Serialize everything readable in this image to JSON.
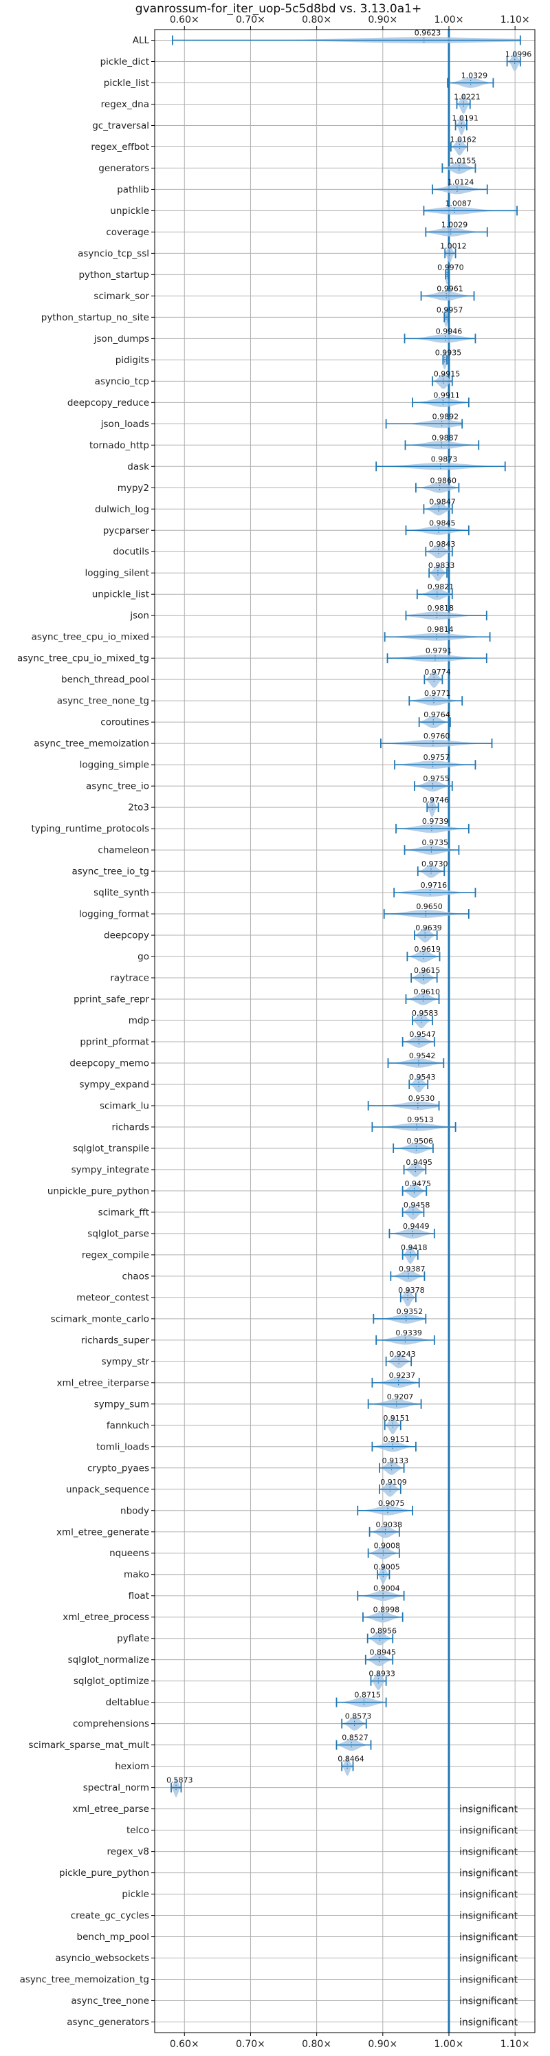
{
  "chart_data": {
    "type": "violin",
    "title": "gvanrossum-for_iter_uop-5c5d8bd vs. 3.13.0a1+",
    "xlim": [
      0.555,
      1.13
    ],
    "x_ticks": [
      0.6,
      0.7,
      0.8,
      0.9,
      1.0,
      1.1
    ],
    "x_tick_labels": [
      "0.60×",
      "0.70×",
      "0.80×",
      "0.90×",
      "1.00×",
      "1.10×"
    ],
    "reference_line": 1.0,
    "grid": true,
    "colors": {
      "series": "#1f77b4",
      "violin": "#a9c8e6",
      "grid": "#b0b0b0"
    },
    "insignificant_label": "insignificant",
    "benchmarks": [
      {
        "name": "ALL",
        "value": 0.9623,
        "label": "0.9623",
        "min": 0.582,
        "max": 1.108,
        "sig": true
      },
      {
        "name": "pickle_dict",
        "value": 1.0996,
        "label": "1.0996",
        "min": 1.088,
        "max": 1.108,
        "sig": true
      },
      {
        "name": "pickle_list",
        "value": 1.0329,
        "label": "1.0329",
        "min": 0.998,
        "max": 1.067,
        "sig": true
      },
      {
        "name": "regex_dna",
        "value": 1.0221,
        "label": "1.0221",
        "min": 1.012,
        "max": 1.032,
        "sig": true
      },
      {
        "name": "gc_traversal",
        "value": 1.0191,
        "label": "1.0191",
        "min": 1.01,
        "max": 1.027,
        "sig": true
      },
      {
        "name": "regex_effbot",
        "value": 1.0162,
        "label": "1.0162",
        "min": 1.003,
        "max": 1.028,
        "sig": true
      },
      {
        "name": "generators",
        "value": 1.0155,
        "label": "1.0155",
        "min": 0.99,
        "max": 1.04,
        "sig": true
      },
      {
        "name": "pathlib",
        "value": 1.0124,
        "label": "1.0124",
        "min": 0.975,
        "max": 1.058,
        "sig": true
      },
      {
        "name": "unpickle",
        "value": 1.0087,
        "label": "1.0087",
        "min": 0.962,
        "max": 1.103,
        "sig": true
      },
      {
        "name": "coverage",
        "value": 1.0029,
        "label": "1.0029",
        "min": 0.965,
        "max": 1.058,
        "sig": true
      },
      {
        "name": "asyncio_tcp_ssl",
        "value": 1.0012,
        "label": "1.0012",
        "min": 0.994,
        "max": 1.01,
        "sig": true
      },
      {
        "name": "python_startup",
        "value": 0.997,
        "label": "0.9970",
        "min": 0.995,
        "max": 0.999,
        "sig": true
      },
      {
        "name": "scimark_sor",
        "value": 0.9961,
        "label": "0.9961",
        "min": 0.958,
        "max": 1.038,
        "sig": true
      },
      {
        "name": "python_startup_no_site",
        "value": 0.9957,
        "label": "0.9957",
        "min": 0.993,
        "max": 0.999,
        "sig": true
      },
      {
        "name": "json_dumps",
        "value": 0.9946,
        "label": "0.9946",
        "min": 0.933,
        "max": 1.04,
        "sig": true
      },
      {
        "name": "pidigits",
        "value": 0.9935,
        "label": "0.9935",
        "min": 0.991,
        "max": 0.997,
        "sig": true
      },
      {
        "name": "asyncio_tcp",
        "value": 0.9915,
        "label": "0.9915",
        "min": 0.975,
        "max": 1.005,
        "sig": true
      },
      {
        "name": "deepcopy_reduce",
        "value": 0.9911,
        "label": "0.9911",
        "min": 0.945,
        "max": 1.03,
        "sig": true
      },
      {
        "name": "json_loads",
        "value": 0.9892,
        "label": "0.9892",
        "min": 0.905,
        "max": 1.02,
        "sig": true
      },
      {
        "name": "tornado_http",
        "value": 0.9887,
        "label": "0.9887",
        "min": 0.934,
        "max": 1.045,
        "sig": true
      },
      {
        "name": "dask",
        "value": 0.9873,
        "label": "0.9873",
        "min": 0.89,
        "max": 1.085,
        "sig": true
      },
      {
        "name": "mypy2",
        "value": 0.986,
        "label": "0.9860",
        "min": 0.95,
        "max": 1.015,
        "sig": true
      },
      {
        "name": "dulwich_log",
        "value": 0.9847,
        "label": "0.9847",
        "min": 0.962,
        "max": 1.005,
        "sig": true
      },
      {
        "name": "pycparser",
        "value": 0.9845,
        "label": "0.9845",
        "min": 0.935,
        "max": 1.03,
        "sig": true
      },
      {
        "name": "docutils",
        "value": 0.9843,
        "label": "0.9843",
        "min": 0.965,
        "max": 1.005,
        "sig": true
      },
      {
        "name": "logging_silent",
        "value": 0.9833,
        "label": "0.9833",
        "min": 0.97,
        "max": 0.997,
        "sig": true
      },
      {
        "name": "unpickle_list",
        "value": 0.9821,
        "label": "0.9821",
        "min": 0.952,
        "max": 1.005,
        "sig": true
      },
      {
        "name": "json",
        "value": 0.9818,
        "label": "0.9818",
        "min": 0.935,
        "max": 1.057,
        "sig": true
      },
      {
        "name": "async_tree_cpu_io_mixed",
        "value": 0.9814,
        "label": "0.9814",
        "min": 0.903,
        "max": 1.062,
        "sig": true
      },
      {
        "name": "async_tree_cpu_io_mixed_tg",
        "value": 0.9791,
        "label": "0.9791",
        "min": 0.907,
        "max": 1.057,
        "sig": true
      },
      {
        "name": "bench_thread_pool",
        "value": 0.9774,
        "label": "0.9774",
        "min": 0.963,
        "max": 0.99,
        "sig": true
      },
      {
        "name": "async_tree_none_tg",
        "value": 0.9771,
        "label": "0.9771",
        "min": 0.94,
        "max": 1.02,
        "sig": true
      },
      {
        "name": "coroutines",
        "value": 0.9764,
        "label": "0.9764",
        "min": 0.955,
        "max": 1.002,
        "sig": true
      },
      {
        "name": "async_tree_memoization",
        "value": 0.976,
        "label": "0.9760",
        "min": 0.897,
        "max": 1.065,
        "sig": true
      },
      {
        "name": "logging_simple",
        "value": 0.9757,
        "label": "0.9757",
        "min": 0.918,
        "max": 1.04,
        "sig": true
      },
      {
        "name": "async_tree_io",
        "value": 0.9755,
        "label": "0.9755",
        "min": 0.948,
        "max": 1.005,
        "sig": true
      },
      {
        "name": "2to3",
        "value": 0.9746,
        "label": "0.9746",
        "min": 0.967,
        "max": 0.984,
        "sig": true
      },
      {
        "name": "typing_runtime_protocols",
        "value": 0.9739,
        "label": "0.9739",
        "min": 0.92,
        "max": 1.03,
        "sig": true
      },
      {
        "name": "chameleon",
        "value": 0.9735,
        "label": "0.9735",
        "min": 0.933,
        "max": 1.015,
        "sig": true
      },
      {
        "name": "async_tree_io_tg",
        "value": 0.973,
        "label": "0.9730",
        "min": 0.953,
        "max": 0.993,
        "sig": true
      },
      {
        "name": "sqlite_synth",
        "value": 0.9716,
        "label": "0.9716",
        "min": 0.917,
        "max": 1.04,
        "sig": true
      },
      {
        "name": "logging_format",
        "value": 0.965,
        "label": "0.9650",
        "min": 0.902,
        "max": 1.03,
        "sig": true
      },
      {
        "name": "deepcopy",
        "value": 0.9639,
        "label": "0.9639",
        "min": 0.948,
        "max": 0.982,
        "sig": true
      },
      {
        "name": "go",
        "value": 0.9619,
        "label": "0.9619",
        "min": 0.937,
        "max": 0.986,
        "sig": true
      },
      {
        "name": "raytrace",
        "value": 0.9615,
        "label": "0.9615",
        "min": 0.943,
        "max": 0.982,
        "sig": true
      },
      {
        "name": "pprint_safe_repr",
        "value": 0.961,
        "label": "0.9610",
        "min": 0.935,
        "max": 0.985,
        "sig": true
      },
      {
        "name": "mdp",
        "value": 0.9583,
        "label": "0.9583",
        "min": 0.945,
        "max": 0.975,
        "sig": true
      },
      {
        "name": "pprint_pformat",
        "value": 0.9547,
        "label": "0.9547",
        "min": 0.93,
        "max": 0.978,
        "sig": true
      },
      {
        "name": "deepcopy_memo",
        "value": 0.9542,
        "label": "0.9542",
        "min": 0.908,
        "max": 0.992,
        "sig": true
      },
      {
        "name": "sympy_expand",
        "value": 0.9543,
        "label": "0.9543",
        "min": 0.94,
        "max": 0.968,
        "sig": true
      },
      {
        "name": "scimark_lu",
        "value": 0.953,
        "label": "0.9530",
        "min": 0.878,
        "max": 0.985,
        "sig": true
      },
      {
        "name": "richards",
        "value": 0.9513,
        "label": "0.9513",
        "min": 0.884,
        "max": 1.01,
        "sig": true
      },
      {
        "name": "sqlglot_transpile",
        "value": 0.9506,
        "label": "0.9506",
        "min": 0.916,
        "max": 0.976,
        "sig": true
      },
      {
        "name": "sympy_integrate",
        "value": 0.9495,
        "label": "0.9495",
        "min": 0.932,
        "max": 0.965,
        "sig": true
      },
      {
        "name": "unpickle_pure_python",
        "value": 0.9475,
        "label": "0.9475",
        "min": 0.93,
        "max": 0.966,
        "sig": true
      },
      {
        "name": "scimark_fft",
        "value": 0.9458,
        "label": "0.9458",
        "min": 0.93,
        "max": 0.962,
        "sig": true
      },
      {
        "name": "sqlglot_parse",
        "value": 0.9449,
        "label": "0.9449",
        "min": 0.91,
        "max": 0.978,
        "sig": true
      },
      {
        "name": "regex_compile",
        "value": 0.9418,
        "label": "0.9418",
        "min": 0.93,
        "max": 0.953,
        "sig": true
      },
      {
        "name": "chaos",
        "value": 0.9387,
        "label": "0.9387",
        "min": 0.912,
        "max": 0.963,
        "sig": true
      },
      {
        "name": "meteor_contest",
        "value": 0.9378,
        "label": "0.9378",
        "min": 0.927,
        "max": 0.95,
        "sig": true
      },
      {
        "name": "scimark_monte_carlo",
        "value": 0.9352,
        "label": "0.9352",
        "min": 0.886,
        "max": 0.965,
        "sig": true
      },
      {
        "name": "richards_super",
        "value": 0.9339,
        "label": "0.9339",
        "min": 0.89,
        "max": 0.978,
        "sig": true
      },
      {
        "name": "sympy_str",
        "value": 0.9243,
        "label": "0.9243",
        "min": 0.905,
        "max": 0.943,
        "sig": true
      },
      {
        "name": "xml_etree_iterparse",
        "value": 0.9237,
        "label": "0.9237",
        "min": 0.884,
        "max": 0.955,
        "sig": true
      },
      {
        "name": "sympy_sum",
        "value": 0.9207,
        "label": "0.9207",
        "min": 0.878,
        "max": 0.958,
        "sig": true
      },
      {
        "name": "fannkuch",
        "value": 0.9151,
        "label": "0.9151",
        "min": 0.903,
        "max": 0.927,
        "sig": true
      },
      {
        "name": "tomli_loads",
        "value": 0.9151,
        "label": "0.9151",
        "min": 0.884,
        "max": 0.95,
        "sig": true
      },
      {
        "name": "crypto_pyaes",
        "value": 0.9133,
        "label": "0.9133",
        "min": 0.895,
        "max": 0.932,
        "sig": true
      },
      {
        "name": "unpack_sequence",
        "value": 0.9109,
        "label": "0.9109",
        "min": 0.895,
        "max": 0.927,
        "sig": true
      },
      {
        "name": "nbody",
        "value": 0.9075,
        "label": "0.9075",
        "min": 0.862,
        "max": 0.945,
        "sig": true
      },
      {
        "name": "xml_etree_generate",
        "value": 0.9038,
        "label": "0.9038",
        "min": 0.88,
        "max": 0.925,
        "sig": true
      },
      {
        "name": "nqueens",
        "value": 0.9008,
        "label": "0.9008",
        "min": 0.878,
        "max": 0.925,
        "sig": true
      },
      {
        "name": "mako",
        "value": 0.9005,
        "label": "0.9005",
        "min": 0.892,
        "max": 0.91,
        "sig": true
      },
      {
        "name": "float",
        "value": 0.9004,
        "label": "0.9004",
        "min": 0.862,
        "max": 0.932,
        "sig": true
      },
      {
        "name": "xml_etree_process",
        "value": 0.8998,
        "label": "0.8998",
        "min": 0.87,
        "max": 0.93,
        "sig": true
      },
      {
        "name": "pyflate",
        "value": 0.8956,
        "label": "0.8956",
        "min": 0.877,
        "max": 0.915,
        "sig": true
      },
      {
        "name": "sqlglot_normalize",
        "value": 0.8945,
        "label": "0.8945",
        "min": 0.874,
        "max": 0.915,
        "sig": true
      },
      {
        "name": "sqlglot_optimize",
        "value": 0.8933,
        "label": "0.8933",
        "min": 0.882,
        "max": 0.905,
        "sig": true
      },
      {
        "name": "deltablue",
        "value": 0.8715,
        "label": "0.8715",
        "min": 0.83,
        "max": 0.905,
        "sig": true
      },
      {
        "name": "comprehensions",
        "value": 0.8573,
        "label": "0.8573",
        "min": 0.838,
        "max": 0.875,
        "sig": true
      },
      {
        "name": "scimark_sparse_mat_mult",
        "value": 0.8527,
        "label": "0.8527",
        "min": 0.83,
        "max": 0.882,
        "sig": true
      },
      {
        "name": "hexiom",
        "value": 0.8464,
        "label": "0.8464",
        "min": 0.838,
        "max": 0.855,
        "sig": true
      },
      {
        "name": "spectral_norm",
        "value": 0.5873,
        "label": "0.5873",
        "min": 0.58,
        "max": 0.595,
        "sig": true
      },
      {
        "name": "xml_etree_parse",
        "value": 1.0,
        "label": "",
        "sig": false
      },
      {
        "name": "telco",
        "value": 1.0,
        "label": "",
        "sig": false
      },
      {
        "name": "regex_v8",
        "value": 1.0,
        "label": "",
        "sig": false
      },
      {
        "name": "pickle_pure_python",
        "value": 1.0,
        "label": "",
        "sig": false
      },
      {
        "name": "pickle",
        "value": 1.0,
        "label": "",
        "sig": false
      },
      {
        "name": "create_gc_cycles",
        "value": 1.0,
        "label": "",
        "sig": false
      },
      {
        "name": "bench_mp_pool",
        "value": 1.0,
        "label": "",
        "sig": false
      },
      {
        "name": "asyncio_websockets",
        "value": 1.0,
        "label": "",
        "sig": false
      },
      {
        "name": "async_tree_memoization_tg",
        "value": 1.0,
        "label": "",
        "sig": false
      },
      {
        "name": "async_tree_none",
        "value": 1.0,
        "label": "",
        "sig": false
      },
      {
        "name": "async_generators",
        "value": 1.0,
        "label": "",
        "sig": false
      }
    ]
  }
}
